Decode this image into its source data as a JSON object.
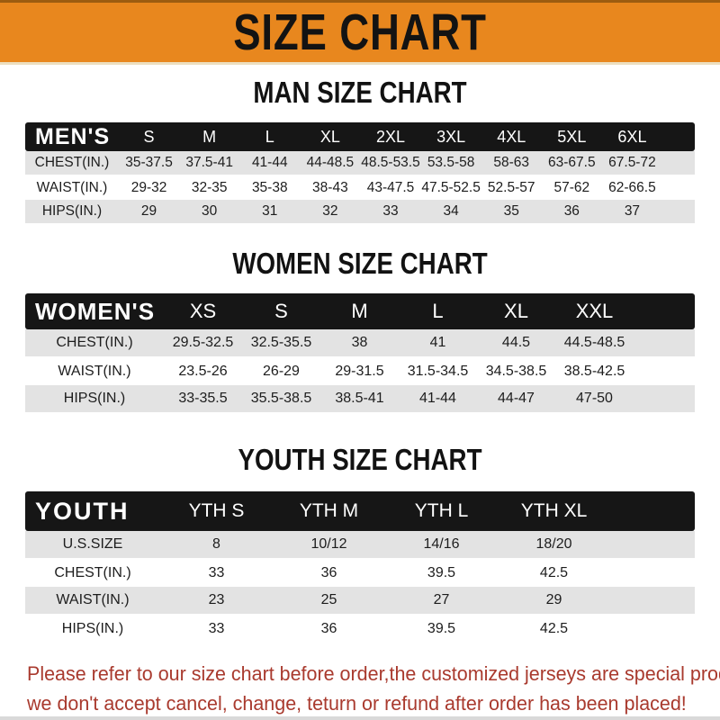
{
  "banner": {
    "title": "SIZE CHART",
    "bg_color": "#E8871E",
    "text_color": "#131313"
  },
  "sections": [
    {
      "heading": "MAN SIZE CHART",
      "table": {
        "corner": "MEN'S",
        "columns": [
          "S",
          "M",
          "L",
          "XL",
          "2XL",
          "3XL",
          "4XL",
          "5XL",
          "6XL"
        ],
        "rows": [
          {
            "label": "CHEST(IN.)",
            "values": [
              "35-37.5",
              "37.5-41",
              "41-44",
              "44-48.5",
              "48.5-53.5",
              "53.5-58",
              "58-63",
              "63-67.5",
              "67.5-72"
            ]
          },
          {
            "label": "WAIST(IN.)",
            "values": [
              "29-32",
              "32-35",
              "35-38",
              "38-43",
              "43-47.5",
              "47.5-52.5",
              "52.5-57",
              "57-62",
              "62-66.5"
            ]
          },
          {
            "label": "HIPS(IN.)",
            "values": [
              "29",
              "30",
              "31",
              "32",
              "33",
              "34",
              "35",
              "36",
              "37"
            ]
          }
        ]
      }
    },
    {
      "heading": "WOMEN SIZE CHART",
      "table": {
        "corner": "WOMEN'S",
        "columns": [
          "XS",
          "S",
          "M",
          "L",
          "XL",
          "XXL"
        ],
        "rows": [
          {
            "label": "CHEST(IN.)",
            "values": [
              "29.5-32.5",
              "32.5-35.5",
              "38",
              "41",
              "44.5",
              "44.5-48.5"
            ]
          },
          {
            "label": "WAIST(IN.)",
            "values": [
              "23.5-26",
              "26-29",
              "29-31.5",
              "31.5-34.5",
              "34.5-38.5",
              "38.5-42.5"
            ]
          },
          {
            "label": "HIPS(IN.)",
            "values": [
              "33-35.5",
              "35.5-38.5",
              "38.5-41",
              "41-44",
              "44-47",
              "47-50"
            ]
          }
        ]
      }
    },
    {
      "heading": "YOUTH SIZE CHART",
      "table": {
        "corner": "YOUTH",
        "columns": [
          "YTH S",
          "YTH M",
          "YTH L",
          "YTH XL"
        ],
        "rows": [
          {
            "label": "U.S.SIZE",
            "values": [
              "8",
              "10/12",
              "14/16",
              "18/20"
            ]
          },
          {
            "label": "CHEST(IN.)",
            "values": [
              "33",
              "36",
              "39.5",
              "42.5"
            ]
          },
          {
            "label": "WAIST(IN.)",
            "values": [
              "23",
              "25",
              "27",
              "29"
            ]
          },
          {
            "label": "HIPS(IN.)",
            "values": [
              "33",
              "36",
              "39.5",
              "42.5"
            ]
          }
        ]
      }
    }
  ],
  "footer": {
    "line1": "Please refer to our size chart before order,the customized jerseys are special products,",
    "line2": "we don't accept cancel, change, teturn or refund after order has been placed!",
    "text_color": "#A93A2E"
  },
  "colors": {
    "header_bar": "#161616",
    "row_alt": "#E3E3E3",
    "banner_orange": "#E8871E"
  }
}
